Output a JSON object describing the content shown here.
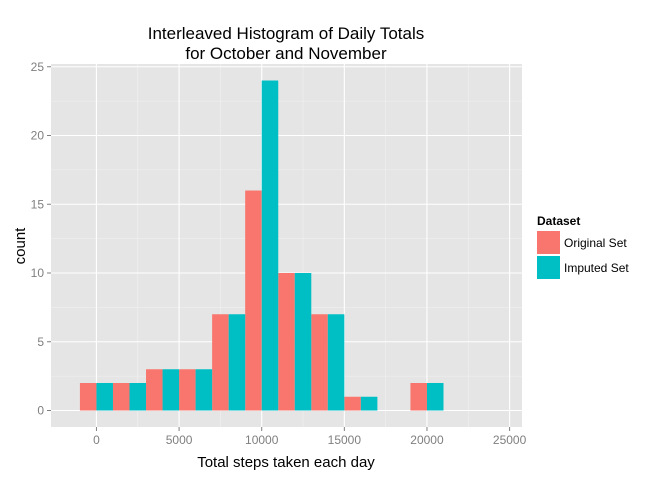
{
  "chart_data": {
    "type": "bar",
    "title_lines": [
      "Interleaved Histogram of Daily Totals",
      "for October and November"
    ],
    "xlabel": "Total steps taken each day",
    "ylabel": "count",
    "xlim": [
      -2750,
      25750
    ],
    "ylim": [
      -1.2,
      25.2
    ],
    "x_ticks": [
      0,
      5000,
      10000,
      15000,
      20000,
      25000
    ],
    "y_ticks": [
      0,
      5,
      10,
      15,
      20,
      25
    ],
    "bin_width": 2000,
    "bins": [
      0,
      2000,
      4000,
      6000,
      8000,
      10000,
      12000,
      14000,
      16000,
      18000,
      20000
    ],
    "series": [
      {
        "name": "Original Set",
        "color": "#F8766D",
        "values": [
          2,
          2,
          3,
          3,
          7,
          16,
          10,
          7,
          1,
          0,
          2
        ]
      },
      {
        "name": "Imputed Set",
        "color": "#00BFC4",
        "values": [
          2,
          2,
          3,
          3,
          7,
          24,
          10,
          7,
          1,
          0,
          2
        ]
      }
    ],
    "legend": {
      "title": "Dataset",
      "position": "right"
    },
    "grid": true,
    "panel_background": "#E5E5E5",
    "grid_color": "#FFFFFF"
  }
}
